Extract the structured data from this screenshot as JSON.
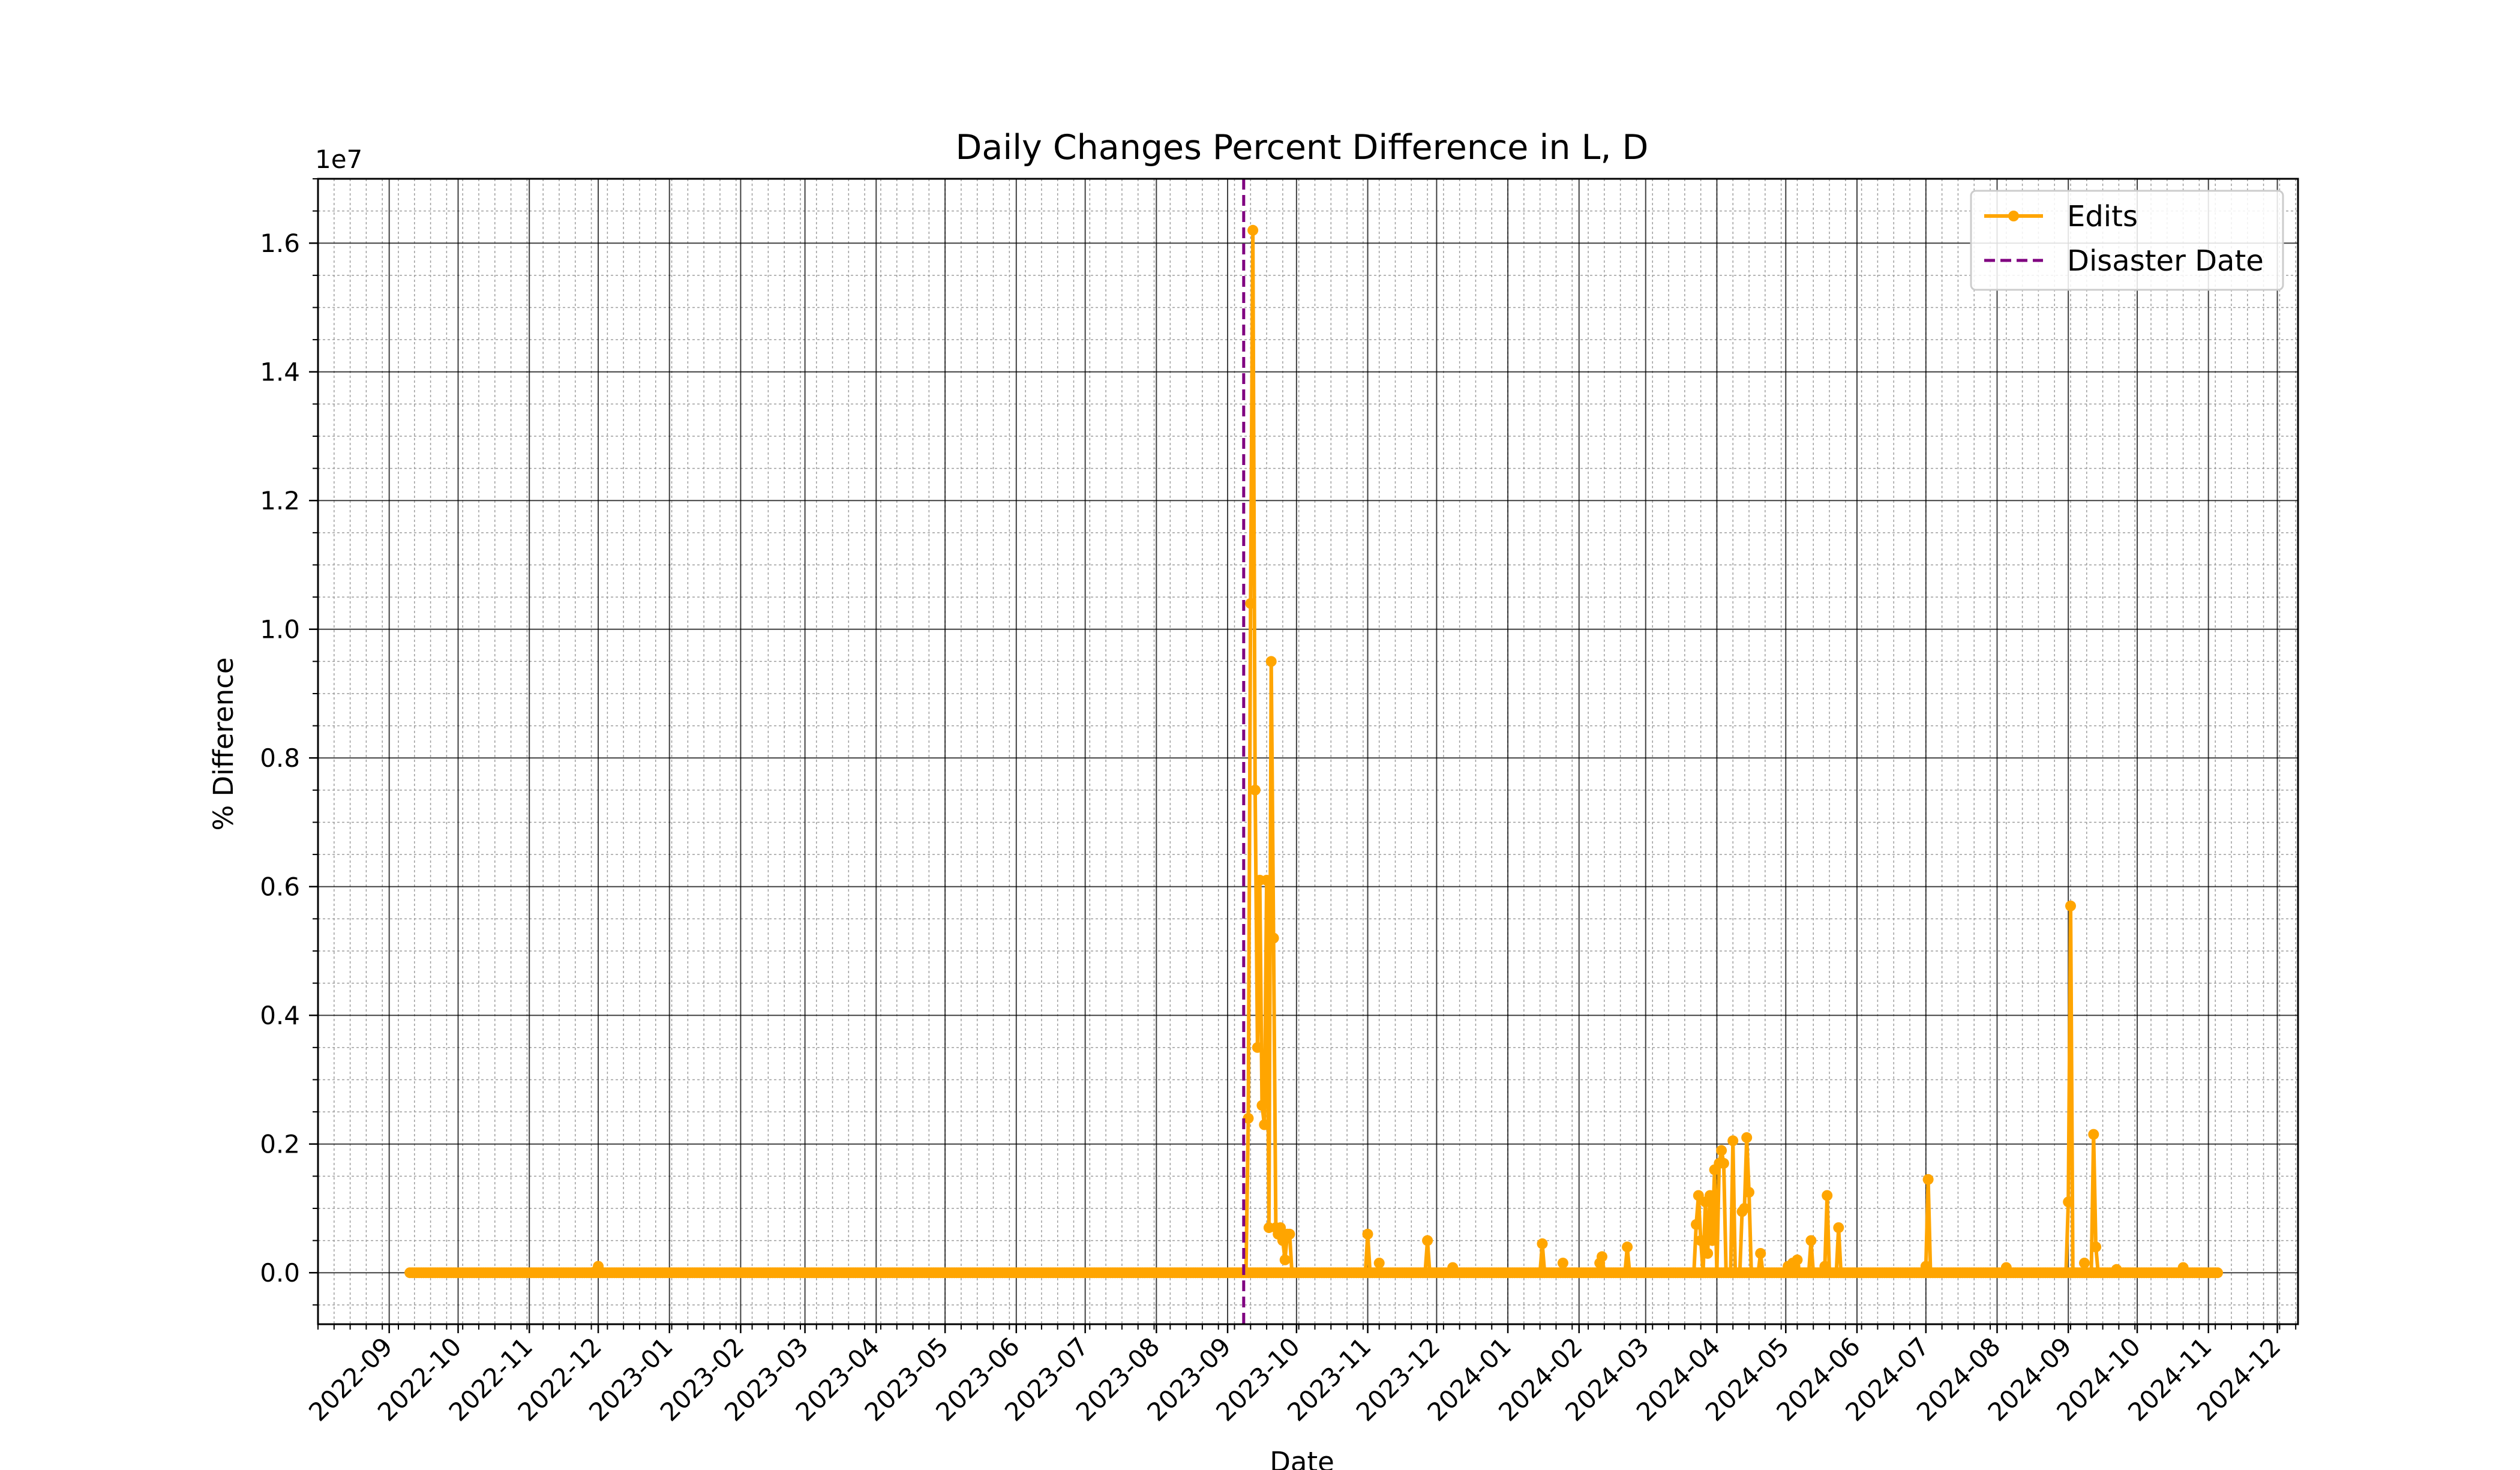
{
  "chart_data": {
    "type": "line",
    "title": "Daily Changes Percent Difference in L, D",
    "xlabel": "Date",
    "ylabel": "% Difference",
    "y_scale_label": "1e7",
    "y_multiplier": 10000000,
    "xlim": [
      "2022-08-01",
      "2024-12-10"
    ],
    "ylim": [
      -0.08,
      1.7
    ],
    "grid": {
      "major": true,
      "minor": true
    },
    "legend_position": "top-right",
    "colors": {
      "edits": "#FFA500",
      "disaster": "#800080",
      "grid_major": "#000000",
      "grid_minor": "#9e9e9e"
    },
    "x_ticks": [
      "2022-09",
      "2022-10",
      "2022-11",
      "2022-12",
      "2023-01",
      "2023-02",
      "2023-03",
      "2023-04",
      "2023-05",
      "2023-06",
      "2023-07",
      "2023-08",
      "2023-09",
      "2023-10",
      "2023-11",
      "2023-12",
      "2024-01",
      "2024-02",
      "2024-03",
      "2024-04",
      "2024-05",
      "2024-06",
      "2024-07",
      "2024-08",
      "2024-09",
      "2024-10",
      "2024-11",
      "2024-12"
    ],
    "y_ticks": [
      "0.0",
      "0.2",
      "0.4",
      "0.6",
      "0.8",
      "1.0",
      "1.2",
      "1.4",
      "1.6"
    ],
    "disaster_date": "2023-09-08",
    "series": [
      {
        "name": "Edits",
        "color": "#FFA500",
        "points": [
          [
            "2022-09-10",
            0
          ],
          [
            "2022-10-10",
            0
          ],
          [
            "2022-11-10",
            0
          ],
          [
            "2022-11-25",
            0
          ],
          [
            "2022-12-01",
            0.01
          ],
          [
            "2022-12-06",
            0
          ],
          [
            "2023-01-10",
            0
          ],
          [
            "2023-02-10",
            0
          ],
          [
            "2023-03-10",
            0
          ],
          [
            "2023-04-10",
            0
          ],
          [
            "2023-05-10",
            0
          ],
          [
            "2023-06-10",
            0
          ],
          [
            "2023-07-10",
            0
          ],
          [
            "2023-08-10",
            0
          ],
          [
            "2023-09-09",
            0
          ],
          [
            "2023-09-10",
            0.24
          ],
          [
            "2023-09-11",
            1.04
          ],
          [
            "2023-09-12",
            1.62
          ],
          [
            "2023-09-13",
            0.75
          ],
          [
            "2023-09-14",
            0.35
          ],
          [
            "2023-09-15",
            0.61
          ],
          [
            "2023-09-16",
            0.26
          ],
          [
            "2023-09-17",
            0.23
          ],
          [
            "2023-09-18",
            0.61
          ],
          [
            "2023-09-19",
            0.07
          ],
          [
            "2023-09-20",
            0.95
          ],
          [
            "2023-09-21",
            0.52
          ],
          [
            "2023-09-22",
            0.07
          ],
          [
            "2023-09-23",
            0.06
          ],
          [
            "2023-09-24",
            0.07
          ],
          [
            "2023-09-25",
            0.05
          ],
          [
            "2023-09-26",
            0.02
          ],
          [
            "2023-09-27",
            0.06
          ],
          [
            "2023-09-28",
            0.06
          ],
          [
            "2023-09-29",
            0
          ],
          [
            "2023-10-15",
            0
          ],
          [
            "2023-10-31",
            0
          ],
          [
            "2023-11-01",
            0.06
          ],
          [
            "2023-11-02",
            0
          ],
          [
            "2023-11-05",
            0
          ],
          [
            "2023-11-06",
            0.015
          ],
          [
            "2023-11-07",
            0
          ],
          [
            "2023-11-26",
            0
          ],
          [
            "2023-11-27",
            0.05
          ],
          [
            "2023-11-28",
            0
          ],
          [
            "2023-12-07",
            0
          ],
          [
            "2023-12-08",
            0.008
          ],
          [
            "2023-12-09",
            0
          ],
          [
            "2024-01-15",
            0
          ],
          [
            "2024-01-16",
            0.045
          ],
          [
            "2024-01-17",
            0
          ],
          [
            "2024-01-24",
            0
          ],
          [
            "2024-01-25",
            0.015
          ],
          [
            "2024-01-26",
            0
          ],
          [
            "2024-02-09",
            0
          ],
          [
            "2024-02-10",
            0.015
          ],
          [
            "2024-02-11",
            0.025
          ],
          [
            "2024-02-12",
            0
          ],
          [
            "2024-02-21",
            0
          ],
          [
            "2024-02-22",
            0.04
          ],
          [
            "2024-02-23",
            0
          ],
          [
            "2024-03-22",
            0
          ],
          [
            "2024-03-23",
            0.075
          ],
          [
            "2024-03-24",
            0.12
          ],
          [
            "2024-03-25",
            0.05
          ],
          [
            "2024-03-26",
            0
          ],
          [
            "2024-03-27",
            0.11
          ],
          [
            "2024-03-28",
            0.03
          ],
          [
            "2024-03-29",
            0.12
          ],
          [
            "2024-03-30",
            0.05
          ],
          [
            "2024-03-31",
            0.16
          ],
          [
            "2024-04-01",
            0
          ],
          [
            "2024-04-02",
            0.17
          ],
          [
            "2024-04-03",
            0.19
          ],
          [
            "2024-04-04",
            0.17
          ],
          [
            "2024-04-05",
            0
          ],
          [
            "2024-04-07",
            0
          ],
          [
            "2024-04-08",
            0.205
          ],
          [
            "2024-04-09",
            0
          ],
          [
            "2024-04-11",
            0
          ],
          [
            "2024-04-12",
            0.095
          ],
          [
            "2024-04-13",
            0.1
          ],
          [
            "2024-04-14",
            0.21
          ],
          [
            "2024-04-15",
            0.125
          ],
          [
            "2024-04-16",
            0
          ],
          [
            "2024-04-19",
            0
          ],
          [
            "2024-04-20",
            0.03
          ],
          [
            "2024-04-21",
            0
          ],
          [
            "2024-05-01",
            0
          ],
          [
            "2024-05-02",
            0.01
          ],
          [
            "2024-05-03",
            0
          ],
          [
            "2024-05-04",
            0.015
          ],
          [
            "2024-05-05",
            0.01
          ],
          [
            "2024-05-06",
            0.02
          ],
          [
            "2024-05-07",
            0
          ],
          [
            "2024-05-11",
            0
          ],
          [
            "2024-05-12",
            0.05
          ],
          [
            "2024-05-13",
            0
          ],
          [
            "2024-05-17",
            0
          ],
          [
            "2024-05-18",
            0.01
          ],
          [
            "2024-05-19",
            0.12
          ],
          [
            "2024-05-20",
            0
          ],
          [
            "2024-05-23",
            0
          ],
          [
            "2024-05-24",
            0.07
          ],
          [
            "2024-05-25",
            0
          ],
          [
            "2024-06-30",
            0
          ],
          [
            "2024-07-01",
            0.01
          ],
          [
            "2024-07-02",
            0.145
          ],
          [
            "2024-07-03",
            0
          ],
          [
            "2024-08-04",
            0
          ],
          [
            "2024-08-05",
            0.008
          ],
          [
            "2024-08-06",
            0
          ],
          [
            "2024-08-31",
            0
          ],
          [
            "2024-09-01",
            0.11
          ],
          [
            "2024-09-02",
            0.57
          ],
          [
            "2024-09-03",
            0
          ],
          [
            "2024-09-07",
            0
          ],
          [
            "2024-09-08",
            0.015
          ],
          [
            "2024-09-09",
            0
          ],
          [
            "2024-09-11",
            0
          ],
          [
            "2024-09-12",
            0.215
          ],
          [
            "2024-09-13",
            0.04
          ],
          [
            "2024-09-14",
            0
          ],
          [
            "2024-09-21",
            0
          ],
          [
            "2024-09-22",
            0.005
          ],
          [
            "2024-09-23",
            0
          ],
          [
            "2024-10-20",
            0
          ],
          [
            "2024-10-21",
            0.008
          ],
          [
            "2024-10-22",
            0
          ],
          [
            "2024-11-05",
            0
          ]
        ]
      },
      {
        "name": "Disaster Date",
        "color": "#800080",
        "style": "dashed"
      }
    ]
  }
}
